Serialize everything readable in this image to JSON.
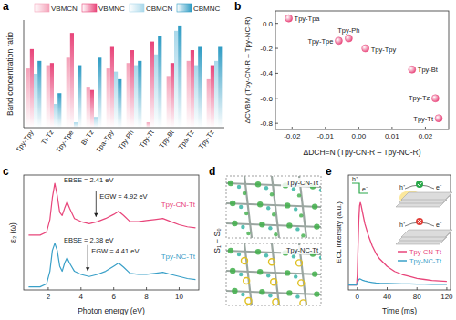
{
  "chart_data": [
    {
      "panel": "a",
      "type": "bar",
      "y_label": "Band concentration ratio",
      "categories": [
        "Tpy-Tpy",
        "Tt-Tz",
        "Tpy-Tpe",
        "Bt-Tz",
        "Tpa-Tpy",
        "Tpy-Ph",
        "Tpy-Tt",
        "Tpy-Bt",
        "Tpa-Tz",
        "Tpy-Tz"
      ],
      "series": [
        {
          "name": "VBMCN",
          "color": "#f4a1b8",
          "values": [
            0.55,
            0.58,
            0.65,
            0.38,
            0.55,
            0.6,
            0.05,
            0.48,
            0.62,
            0.45
          ]
        },
        {
          "name": "VBMNC",
          "color": "#e8457a",
          "values": [
            0.73,
            0.6,
            0.88,
            0.35,
            0.75,
            0.72,
            0.8,
            0.6,
            0.72,
            0.58
          ]
        },
        {
          "name": "CBMCN",
          "color": "#a9d8ea",
          "values": [
            0.5,
            0.22,
            0.05,
            0.1,
            0.52,
            0.58,
            0.68,
            0.9,
            0.58,
            0.62
          ]
        },
        {
          "name": "CBMNC",
          "color": "#2f9cc4",
          "values": [
            0.62,
            0.32,
            0.58,
            0.65,
            0.45,
            0.62,
            0.85,
            0.95,
            0.75,
            0.75
          ]
        }
      ],
      "ylim": [
        0,
        1
      ],
      "tick_labels": "x",
      "legend": "top"
    },
    {
      "panel": "b",
      "type": "scatter",
      "color": "#e8457a",
      "x_label": "ΔDCH=N (Tpy-CN-R – Tpy-NC-R)",
      "y_label": "ΔCVBM (Tpy-CN-R – Tpy-NC-R)",
      "labels": [
        "Tpy-Tpa",
        "Tpy-Ph",
        "Tpy-Tpe",
        "Tpy-Tpy",
        "Tpy-Bt",
        "Tpy-Tz",
        "Tpy-Tt"
      ],
      "x": [
        -0.021,
        -0.003,
        -0.006,
        0.002,
        0.016,
        0.023,
        0.024
      ],
      "values": [
        0.04,
        -0.12,
        -0.14,
        -0.2,
        -0.37,
        -0.6,
        -0.76
      ],
      "xlim": [
        -0.025,
        0.027
      ],
      "xticks": [
        -0.02,
        -0.01,
        {
          "value": 0,
          "label": "0.00"
        },
        0.01,
        0.02
      ],
      "ylim": [
        -0.85,
        0.1
      ],
      "yticks": [
        {
          "value": 0,
          "label": "0.0"
        },
        -0.2,
        -0.4,
        -0.6,
        -0.8
      ]
    },
    {
      "panel": "c",
      "type": "line",
      "x_label": "Photon energy (eV)",
      "y_label": "ε₂ (ω)",
      "x": [
        0.8,
        1.5,
        1.9,
        2.1,
        2.25,
        2.4,
        2.55,
        2.7,
        2.85,
        3.0,
        3.15,
        3.3,
        3.6,
        4.0,
        4.5,
        5.0,
        5.5,
        6.0,
        6.3,
        6.6,
        7.0,
        7.5,
        8.0,
        8.5,
        9.0,
        9.5,
        10.0,
        10.5,
        11.0
      ],
      "series": [
        {
          "name": "Tpy-CN-Tt",
          "color": "#e8457a",
          "values": [
            5.0,
            5.0,
            5.3,
            6.5,
            8.6,
            10.0,
            8.8,
            7.2,
            6.9,
            7.6,
            8.2,
            7.6,
            6.6,
            6.3,
            6.1,
            6.3,
            6.6,
            7.0,
            7.3,
            6.9,
            6.3,
            6.3,
            6.4,
            6.5,
            6.6,
            6.3,
            6.0,
            5.8,
            5.7
          ],
          "annotations": [
            {
              "text": "EBSE = 2.41 eV"
            },
            {
              "text": "EGW = 4.92 eV",
              "x": 4.92
            }
          ]
        },
        {
          "name": "Tpy-NC-Tt",
          "color": "#3aa0c8",
          "values": [
            0.0,
            0.0,
            0.3,
            1.5,
            3.5,
            4.2,
            3.5,
            2.0,
            1.5,
            2.3,
            2.8,
            2.3,
            1.5,
            1.2,
            1.0,
            1.2,
            1.5,
            2.0,
            2.3,
            1.9,
            1.3,
            1.2,
            1.2,
            1.3,
            1.4,
            1.2,
            1.0,
            0.8,
            0.7
          ],
          "annotations": [
            {
              "text": "EBSE = 2.38 eV"
            },
            {
              "text": "EGW = 4.41 eV",
              "x": 4.41
            }
          ]
        }
      ],
      "xlim": [
        0.5,
        11.2
      ],
      "xticks": [
        2,
        4,
        6,
        8,
        10
      ],
      "ylim": [
        -0.3,
        10.8
      ],
      "tick_labels": "x"
    },
    {
      "panel": "d",
      "type": "image",
      "y_label": "S₁ − S₀",
      "labels": [
        "Tpy-CN-Tt",
        "Tpy-NC-Tt"
      ]
    },
    {
      "panel": "e",
      "type": "line",
      "x_label": "Time (ms)",
      "y_label": "ECL intensity (a.u.)",
      "x": [
        -12,
        -1,
        0,
        1,
        2,
        3,
        4,
        5,
        7,
        10,
        15,
        20,
        25,
        30,
        40,
        50,
        60,
        70,
        80,
        90,
        100,
        110,
        120
      ],
      "series": [
        {
          "name": "Tpy-CN-Tt",
          "color": "#e8457a",
          "values": [
            0,
            0,
            2,
            8,
            13,
            15.8,
            16.5,
            16,
            14.5,
            12.3,
            9.8,
            7.8,
            6.3,
            5.2,
            3.7,
            2.7,
            2.1,
            1.7,
            1.3,
            1.1,
            0.9,
            0.8,
            0.7
          ]
        },
        {
          "name": "Tpy-NC-Tt",
          "color": "#3aa0c8",
          "values": [
            0,
            0,
            0.3,
            0.8,
            1.1,
            1.2,
            1.15,
            1.1,
            0.95,
            0.8,
            0.6,
            0.5,
            0.4,
            0.35,
            0.3,
            0.25,
            0.2,
            0.2,
            0.15,
            0.15,
            0.1,
            0.1,
            0.1
          ]
        }
      ],
      "xlim": [
        -12,
        125
      ],
      "xticks": [
        0,
        40,
        80,
        120
      ],
      "ylim": [
        -1,
        22
      ],
      "tick_labels": "x",
      "annotations": [
        "h⁺",
        "e⁻"
      ]
    }
  ]
}
